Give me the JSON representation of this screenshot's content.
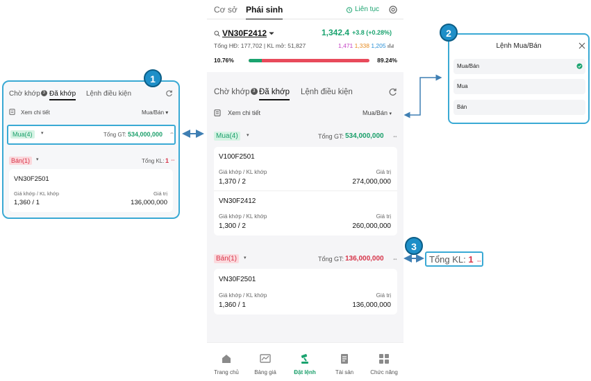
{
  "phone": {
    "top_tabs": [
      "Cơ sở",
      "Phái sinh"
    ],
    "lien_tuc": "Liên tục",
    "symbol": "VN30F2412",
    "price": "1,342.4",
    "change": "+3.8 (+0.28%)",
    "tong_hd": "Tổng HĐ: 177,702 | KL mở: 51,827",
    "vol_a": "1,471",
    "vol_b": "1,338",
    "vol_c": "1,205",
    "buy_pct_label": "10.76%",
    "sell_pct_label": "89.24%",
    "buy_ratio": 0.1076,
    "order_tabs": [
      "Chờ khớp",
      "Đã khớp",
      "Lệnh điều kiện"
    ],
    "pending_badge": "3",
    "xem_chi_tiet": "Xem chi tiết",
    "filter": "Mua/Bán",
    "buy_group": {
      "chip": "Mua(4)",
      "total_label": "Tổng GT:",
      "total_value": "534,000,000",
      "items": [
        {
          "symbol": "V100F2501",
          "price_label": "Giá khớp / KL khớp",
          "price": "1,370 / 2",
          "value_label": "Giá trị",
          "value": "274,000,000"
        },
        {
          "symbol": "VN30F2412",
          "price_label": "Giá khớp / KL khớp",
          "price": "1,300 / 2",
          "value_label": "Giá trị",
          "value": "260,000,000"
        }
      ]
    },
    "sell_group": {
      "chip": "Bán(1)",
      "total_label": "Tổng GT:",
      "total_value": "136,000,000",
      "items": [
        {
          "symbol": "VN30F2501",
          "price_label": "Giá khớp / KL khớp",
          "price": "1,360 / 1",
          "value_label": "Giá trị",
          "value": "136,000,000"
        }
      ]
    },
    "nav": [
      "Trang chủ",
      "Bảng giá",
      "Đặt lệnh",
      "Tài sản",
      "Chức năng"
    ]
  },
  "left_panel": {
    "badge_num": "1",
    "tabs": [
      "Chờ khớp",
      "Đã khớp",
      "Lệnh điều kiện"
    ],
    "pending_badge": "3",
    "xem_chi_tiet": "Xem chi tiết",
    "filter": "Mua/Bán",
    "buy_chip": "Mua(4)",
    "buy_total_label": "Tổng GT:",
    "buy_total": "534,000,000",
    "sell_chip": "Bán(1)",
    "sell_total_label": "Tổng KL:",
    "sell_total": "1",
    "item": {
      "symbol": "VN30F2501",
      "price_label": "Giá khớp / KL khớp",
      "price": "1,360 / 1",
      "value_label": "Giá trị",
      "value": "136,000,000"
    }
  },
  "right_panel": {
    "badge_num": "2",
    "title": "Lệnh Mua/Bán",
    "options": [
      "Mua/Bán",
      "Mua",
      "Bán"
    ],
    "selected_index": 0
  },
  "callout3": {
    "badge_num": "3",
    "label": "Tổng KL:",
    "value": "1"
  },
  "colors": {
    "accent": "#1aa36f",
    "sell": "#d7354a",
    "callout": "#39a9d4"
  }
}
